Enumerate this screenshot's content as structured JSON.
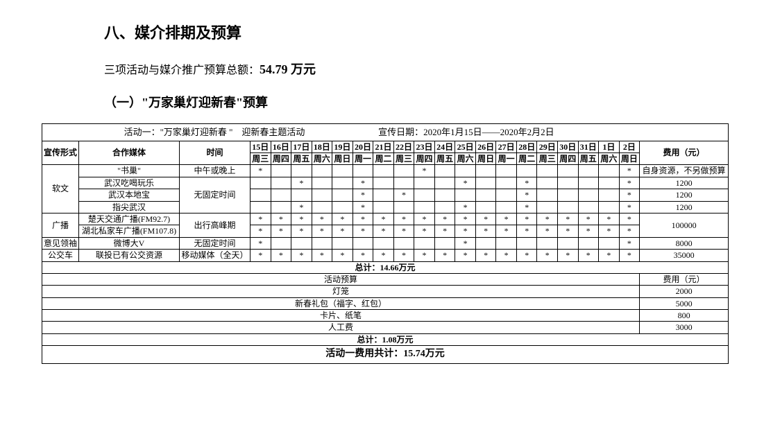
{
  "heading": "八、媒介排期及预算",
  "total_line_prefix": "三项活动与媒介推广预算总额：",
  "total_amount": "54.79 万元",
  "subheading": "（一）\"万家巢灯迎新春\"预算",
  "table": {
    "title_left": "活动一：\"万家巢灯迎新春 \"　迎新春主题活动",
    "title_right": "宣传日期：2020年1月15日——2020年2月2日",
    "col_form": "宣传形式",
    "col_media": "合作媒体",
    "col_time": "时间",
    "col_cost": "费用（元）",
    "days": [
      "15日",
      "16日",
      "17日",
      "18日",
      "19日",
      "20日",
      "21日",
      "22日",
      "23日",
      "24日",
      "25日",
      "26日",
      "27日",
      "28日",
      "29日",
      "30日",
      "31日",
      "1日",
      "2日"
    ],
    "weekdays": [
      "周三",
      "周四",
      "周五",
      "周六",
      "周日",
      "周一",
      "周二",
      "周三",
      "周四",
      "周五",
      "周六",
      "周日",
      "周一",
      "周二",
      "周三",
      "周四",
      "周五",
      "周六",
      "周日"
    ],
    "groups": [
      {
        "name": "软文",
        "rows": [
          {
            "media": "\"书巢\"",
            "time": "中午或晚上",
            "marks": [
              1,
              0,
              0,
              0,
              0,
              0,
              0,
              0,
              1,
              0,
              0,
              0,
              0,
              0,
              0,
              0,
              0,
              0,
              1
            ],
            "cost": "自身资源，不另做预算"
          },
          {
            "media": "武汉吃喝玩乐",
            "time_span": "无固定时间",
            "marks": [
              0,
              0,
              1,
              0,
              0,
              1,
              0,
              0,
              0,
              0,
              1,
              0,
              0,
              1,
              0,
              0,
              0,
              0,
              1
            ],
            "cost": "1200"
          },
          {
            "media": "武汉本地宝",
            "marks": [
              0,
              0,
              0,
              0,
              0,
              1,
              0,
              1,
              0,
              0,
              0,
              0,
              0,
              1,
              0,
              0,
              0,
              0,
              1
            ],
            "cost": "1200"
          },
          {
            "media": "指尖武汉",
            "marks": [
              0,
              0,
              1,
              0,
              0,
              1,
              0,
              0,
              0,
              0,
              1,
              0,
              0,
              1,
              0,
              0,
              0,
              0,
              1
            ],
            "cost": "1200"
          }
        ]
      },
      {
        "name": "广播",
        "rows": [
          {
            "media": "楚天交通广播(FM92.7)",
            "time_span": "出行高峰期",
            "marks": [
              1,
              1,
              1,
              1,
              1,
              1,
              1,
              1,
              1,
              1,
              1,
              1,
              1,
              1,
              1,
              1,
              1,
              1,
              1
            ],
            "cost_span": "100000"
          },
          {
            "media": "湖北私家车广播(FM107.8)",
            "marks": [
              1,
              1,
              1,
              1,
              1,
              1,
              1,
              1,
              1,
              1,
              1,
              1,
              1,
              1,
              1,
              1,
              1,
              1,
              1
            ]
          }
        ]
      },
      {
        "name": "意见领袖",
        "rows": [
          {
            "media": "微博大V",
            "time": "无固定时间",
            "marks": [
              1,
              0,
              0,
              0,
              0,
              0,
              0,
              0,
              0,
              0,
              1,
              0,
              0,
              0,
              0,
              0,
              0,
              0,
              1
            ],
            "cost": "8000"
          }
        ]
      },
      {
        "name": "公交车",
        "rows": [
          {
            "media": "联投已有公交资源",
            "time": "移动媒体（全天）",
            "marks": [
              1,
              1,
              1,
              1,
              1,
              1,
              1,
              1,
              1,
              1,
              1,
              1,
              1,
              1,
              1,
              1,
              1,
              1,
              1
            ],
            "cost": "35000"
          }
        ]
      }
    ],
    "subtotal1_label": "总计：14.66万元",
    "budget_header_left": "活动预算",
    "budget_header_right": "费用（元）",
    "budget_items": [
      {
        "name": "灯笼",
        "cost": "2000"
      },
      {
        "name": "新春礼包（福字、红包）",
        "cost": "5000"
      },
      {
        "name": "卡片、纸笔",
        "cost": "800"
      },
      {
        "name": "人工费",
        "cost": "3000"
      }
    ],
    "subtotal2_label": "总计：1.08万元",
    "grand_total": "活动一费用共计：15.74万元"
  }
}
